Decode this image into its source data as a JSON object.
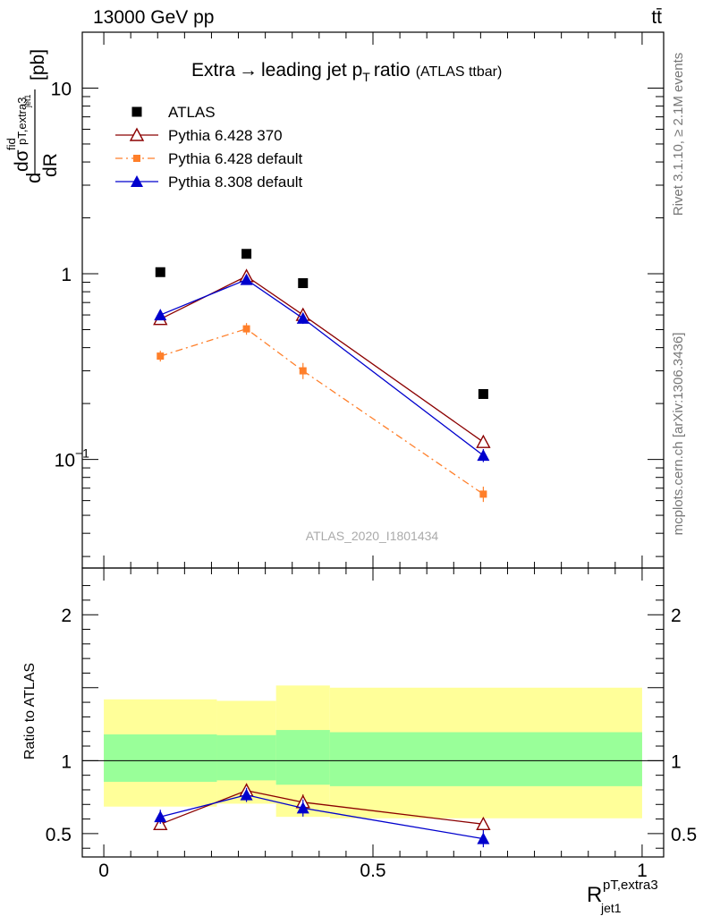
{
  "header": {
    "left": "13000 GeV pp",
    "right": "tt̄"
  },
  "side_labels": {
    "rivet": "Rivet 3.1.10, ≥ 2.1M events",
    "mcplots": "mcplots.cern.ch [arXiv:1306.3436]"
  },
  "chart_data": [
    {
      "type": "scatter",
      "title": "Extra → leading jet pT ratio",
      "title_main": "Extra",
      "title_arrow": "→",
      "title_mid": "leading jet p",
      "title_sub": "T",
      "title_end": "ratio",
      "subtitle": "(ATLAS ttbar)",
      "watermark": "ATLAS_2020_I1801434",
      "ylabel": "d σ fid / d R pT,extra3 jet1 [pb]",
      "ylabel_parts": {
        "d": "d",
        "dR": "dR",
        "sigma": "dσ",
        "fid": "fid",
        "sub_top": "pT,extra3",
        "sub_bot": "jet1",
        "unit": "[pb]"
      },
      "yscale": "log",
      "ylim": [
        0.026,
        20
      ],
      "xlim": [
        -0.04,
        1.04
      ],
      "y_ticks": [
        {
          "value": 0.1,
          "label": "10",
          "sup": "−1"
        },
        {
          "value": 1,
          "label": "1",
          "sup": ""
        },
        {
          "value": 10,
          "label": "10",
          "sup": ""
        }
      ],
      "legend_position": "top-left",
      "series": [
        {
          "name": "ATLAS",
          "color": "#000000",
          "marker": "square-filled",
          "line": "none",
          "x": [
            0.105,
            0.265,
            0.37,
            0.705
          ],
          "y": [
            1.02,
            1.28,
            0.89,
            0.225
          ]
        },
        {
          "name": "Pythia 6.428 370",
          "color": "#8b0000",
          "marker": "triangle-open",
          "line": "solid",
          "x": [
            0.105,
            0.265,
            0.37,
            0.705
          ],
          "y": [
            0.57,
            0.97,
            0.6,
            0.124
          ],
          "yerr": [
            0.015,
            0.02,
            0.015,
            0.004
          ]
        },
        {
          "name": "Pythia 6.428 default",
          "color": "#ff7f2a",
          "marker": "square-filled",
          "line": "dashdot",
          "x": [
            0.105,
            0.265,
            0.37,
            0.705
          ],
          "y": [
            0.36,
            0.505,
            0.3,
            0.065
          ],
          "yerr": [
            0.012,
            0.02,
            0.02,
            0.004
          ]
        },
        {
          "name": "Pythia 8.308 default",
          "color": "#0000cd",
          "marker": "triangle-filled",
          "line": "solid",
          "x": [
            0.105,
            0.265,
            0.37,
            0.705
          ],
          "y": [
            0.6,
            0.93,
            0.575,
            0.105
          ],
          "yerr": [
            0.015,
            0.02,
            0.02,
            0.005
          ]
        }
      ]
    },
    {
      "type": "scatter",
      "ylabel": "Ratio to ATLAS",
      "xlabel": "R",
      "xlabel_sup": "pT,extra3",
      "xlabel_sub": "jet1",
      "ylim": [
        0.34,
        2.32
      ],
      "xlim": [
        -0.04,
        1.04
      ],
      "y_ticks": [
        {
          "value": 0.5,
          "label": "0.5"
        },
        {
          "value": 1,
          "label": "1"
        },
        {
          "value": 2,
          "label": "2"
        }
      ],
      "x_ticks": [
        {
          "value": 0,
          "label": "0"
        },
        {
          "value": 0.5,
          "label": "0.5"
        },
        {
          "value": 1,
          "label": "1"
        }
      ],
      "reference_line": 1,
      "bands": [
        {
          "x0": 0,
          "x1": 0.21,
          "outer": [
            0.685,
            1.42
          ],
          "inner": [
            0.855,
            1.18
          ]
        },
        {
          "x0": 0.21,
          "x1": 0.32,
          "outer": [
            0.705,
            1.41
          ],
          "inner": [
            0.865,
            1.175
          ]
        },
        {
          "x0": 0.32,
          "x1": 0.42,
          "outer": [
            0.615,
            1.515
          ],
          "inner": [
            0.835,
            1.21
          ]
        },
        {
          "x0": 0.42,
          "x1": 1.0,
          "outer": [
            0.605,
            1.5
          ],
          "inner": [
            0.825,
            1.195
          ]
        }
      ],
      "band_colors": {
        "outer": "#ffff99",
        "inner": "#99ff99"
      },
      "series": [
        {
          "name": "Pythia 6.428 370",
          "color": "#8b0000",
          "marker": "triangle-open",
          "x": [
            0.105,
            0.265,
            0.37,
            0.705
          ],
          "y": [
            0.565,
            0.795,
            0.715,
            0.565
          ],
          "yerr": [
            0.018,
            0.03,
            0.035,
            0.025
          ]
        },
        {
          "name": "Pythia 8.308 default",
          "color": "#0000cd",
          "marker": "triangle-filled",
          "x": [
            0.105,
            0.265,
            0.37,
            0.705
          ],
          "y": [
            0.615,
            0.765,
            0.675,
            0.465
          ],
          "yerr": [
            0.03,
            0.03,
            0.04,
            0.04
          ]
        }
      ]
    }
  ]
}
